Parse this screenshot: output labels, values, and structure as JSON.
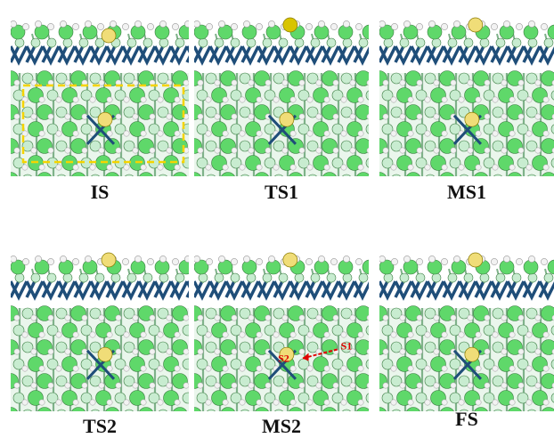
{
  "figure": {
    "panels": [
      {
        "label": "IS",
        "s_atom": "side-low",
        "show_cell_box": true,
        "annotations": []
      },
      {
        "label": "TS1",
        "s_atom": "side-high-dark",
        "show_cell_box": false,
        "annotations": []
      },
      {
        "label": "MS1",
        "s_atom": "side-high",
        "show_cell_box": false,
        "annotations": []
      },
      {
        "label": "TS2",
        "s_atom": "side-high",
        "show_cell_box": false,
        "annotations": []
      },
      {
        "label": "MS2",
        "s_atom": "side-high",
        "show_cell_box": false,
        "annotations": [
          "S1",
          "S2"
        ]
      },
      {
        "label": "FS",
        "s_atom": "side-high",
        "show_cell_box": false,
        "annotations": []
      }
    ],
    "colors": {
      "green_atom": "#5fd86a",
      "pale_atom": "#c8ecd0",
      "hydrogen": "#f2f2f2",
      "sulfur": "#f0dd78",
      "sulfur_dark": "#d8c400",
      "bond_blue": "#1f4e79",
      "cell_box": "#f5d400",
      "arrow": "#e00000"
    }
  }
}
